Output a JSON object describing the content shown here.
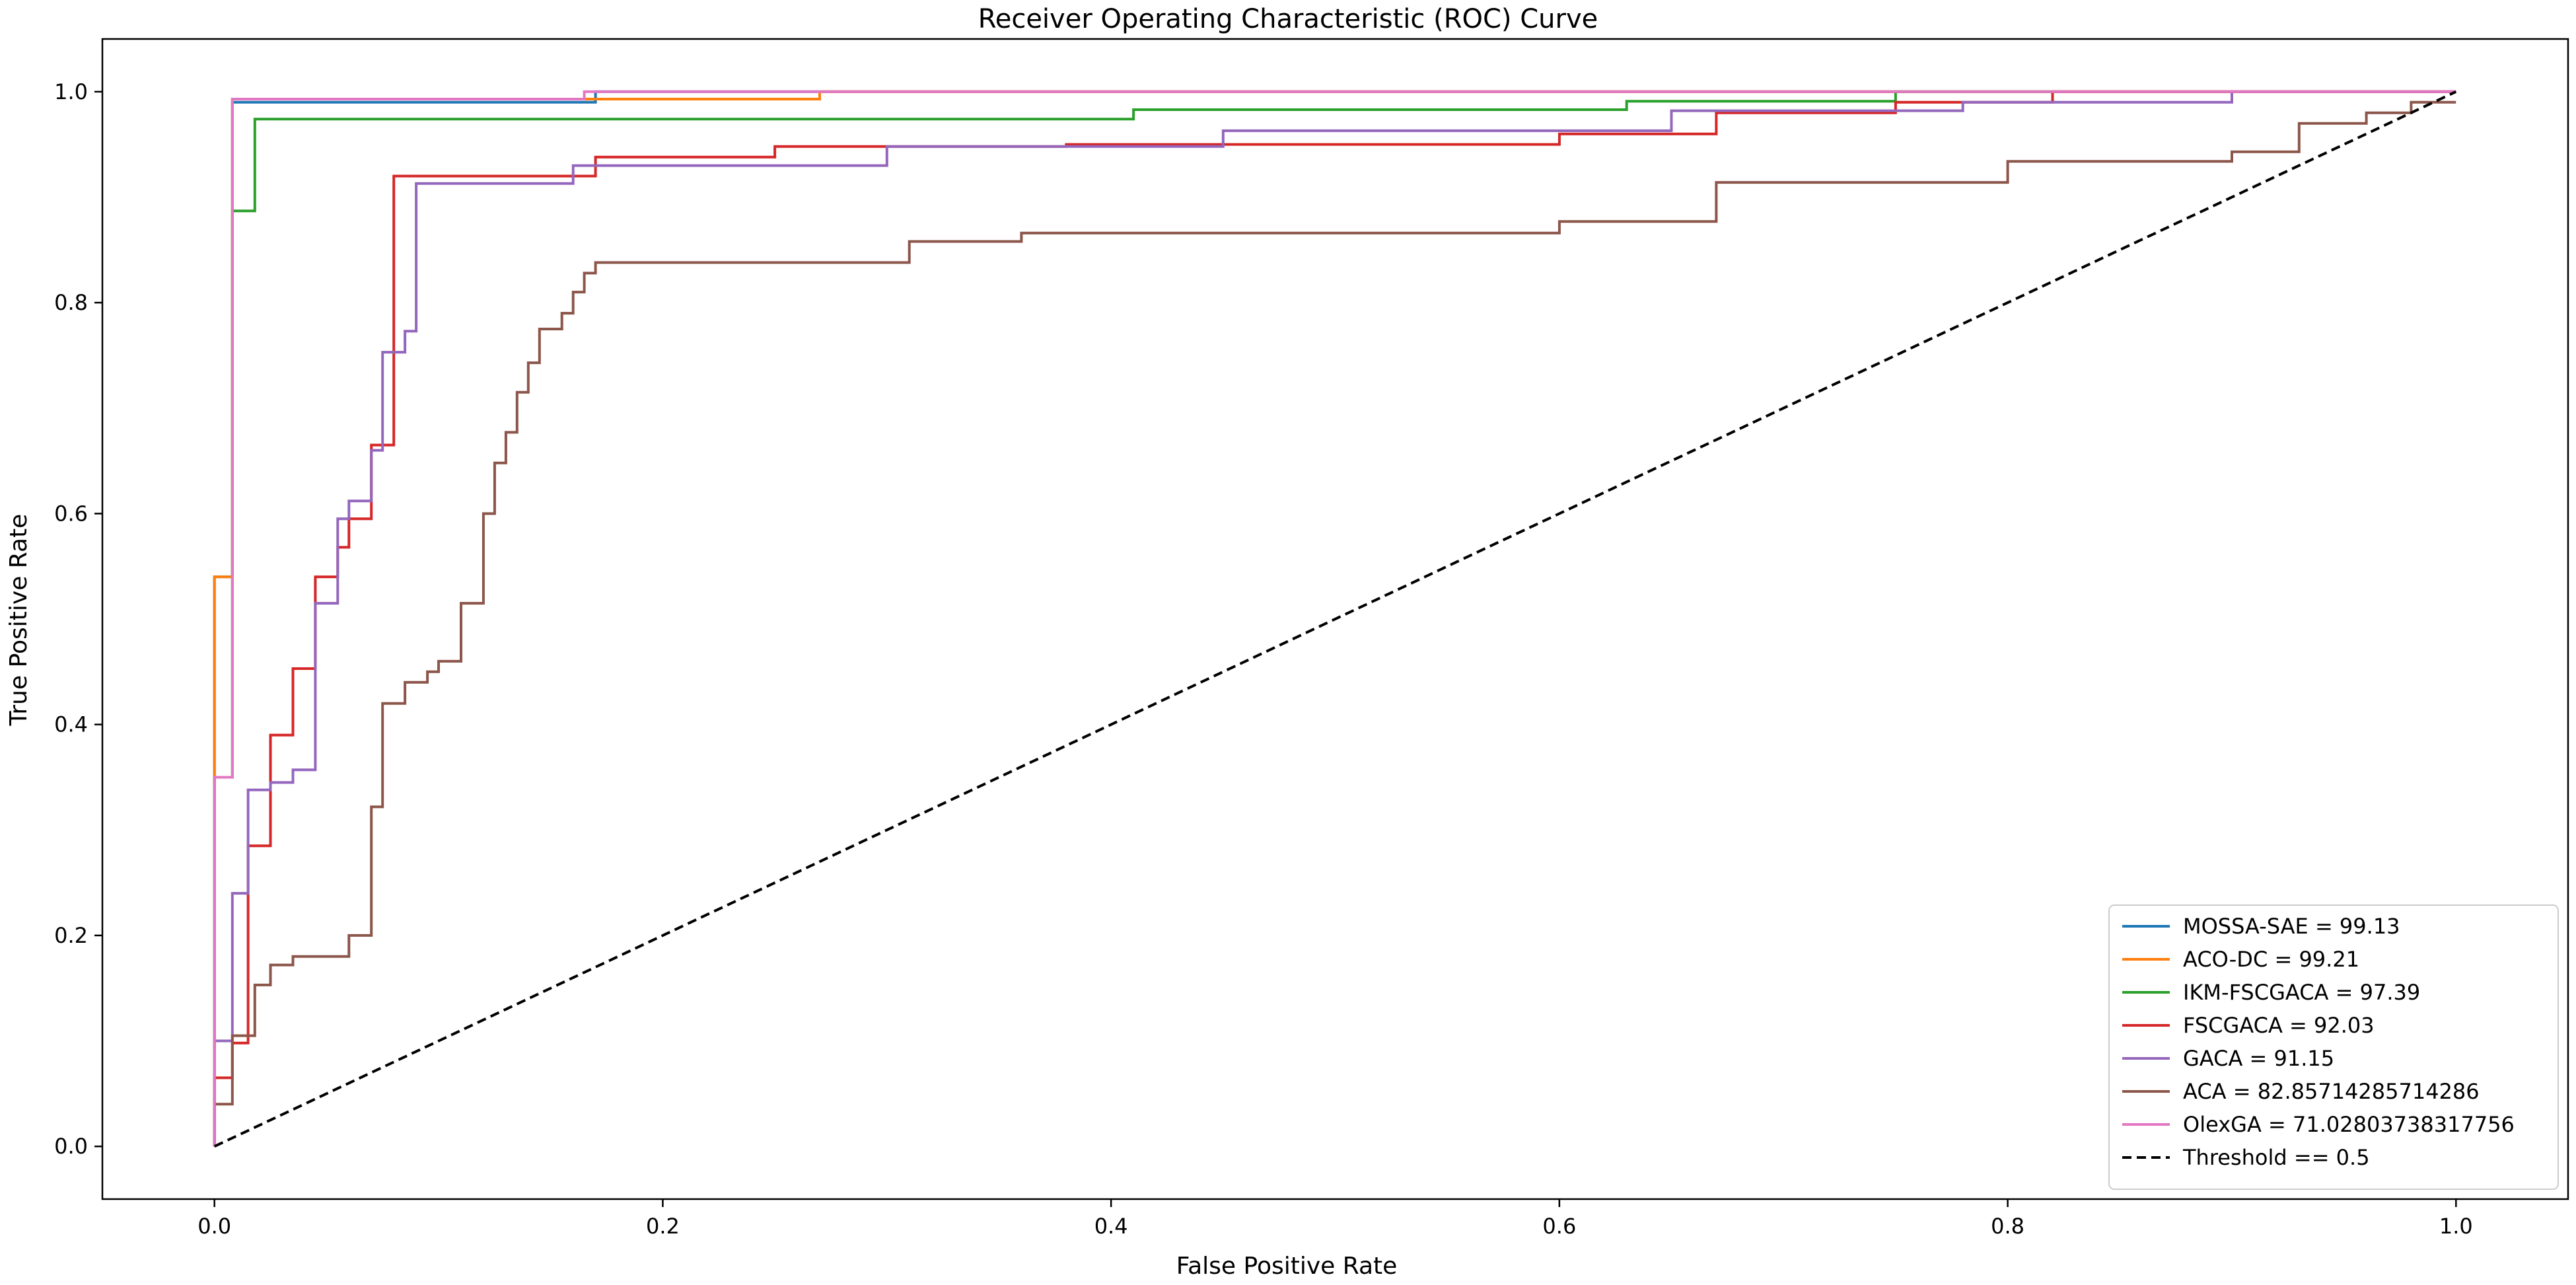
{
  "chart_data": {
    "type": "line",
    "title": "Receiver Operating Characteristic (ROC) Curve",
    "xlabel": "False Positive Rate",
    "ylabel": "True Positive Rate",
    "xlim": [
      -0.05,
      1.05
    ],
    "ylim": [
      -0.05,
      1.05
    ],
    "xticks": [
      0.0,
      0.2,
      0.4,
      0.6,
      0.8,
      1.0
    ],
    "yticks": [
      0.0,
      0.2,
      0.4,
      0.6,
      0.8,
      1.0
    ],
    "xtick_labels": [
      "0.0",
      "0.2",
      "0.4",
      "0.6",
      "0.8",
      "1.0"
    ],
    "ytick_labels": [
      "0.0",
      "0.2",
      "0.4",
      "0.6",
      "0.8",
      "1.0"
    ],
    "grid": false,
    "legend_position": "lower-right",
    "series": [
      {
        "name": "MOSSA-SAE = 99.13",
        "color": "#1f77b4",
        "style": "solid",
        "x": [
          0.0,
          0.0,
          0.008,
          0.008,
          0.17,
          0.17,
          1.0
        ],
        "y": [
          0.0,
          0.54,
          0.54,
          0.99,
          0.99,
          1.0,
          1.0
        ]
      },
      {
        "name": "ACO-DC = 99.21",
        "color": "#ff7f0e",
        "style": "solid",
        "x": [
          0.0,
          0.0,
          0.008,
          0.008,
          0.27,
          0.27,
          1.0
        ],
        "y": [
          0.0,
          0.54,
          0.54,
          0.993,
          0.993,
          1.0,
          1.0
        ]
      },
      {
        "name": "IKM-FSCGACA = 97.39",
        "color": "#2ca02c",
        "style": "solid",
        "x": [
          0.0,
          0.0,
          0.008,
          0.008,
          0.018,
          0.018,
          0.41,
          0.41,
          0.63,
          0.63,
          0.75,
          0.75,
          1.0
        ],
        "y": [
          0.0,
          0.35,
          0.35,
          0.887,
          0.887,
          0.974,
          0.974,
          0.983,
          0.983,
          0.991,
          0.991,
          1.0,
          1.0
        ]
      },
      {
        "name": "FSCGACA = 92.03",
        "color": "#d62728",
        "style": "solid",
        "x": [
          0.0,
          0.0,
          0.008,
          0.008,
          0.015,
          0.015,
          0.025,
          0.025,
          0.035,
          0.035,
          0.045,
          0.045,
          0.055,
          0.055,
          0.06,
          0.06,
          0.07,
          0.07,
          0.08,
          0.08,
          0.15,
          0.15,
          0.17,
          0.17,
          0.25,
          0.25,
          0.38,
          0.38,
          0.6,
          0.6,
          0.67,
          0.67,
          0.75,
          0.75,
          0.82,
          0.82,
          1.0
        ],
        "y": [
          0.0,
          0.065,
          0.065,
          0.098,
          0.098,
          0.285,
          0.285,
          0.39,
          0.39,
          0.453,
          0.453,
          0.54,
          0.54,
          0.568,
          0.568,
          0.595,
          0.595,
          0.665,
          0.665,
          0.92,
          0.92,
          0.92,
          0.92,
          0.938,
          0.938,
          0.948,
          0.948,
          0.95,
          0.95,
          0.96,
          0.96,
          0.98,
          0.98,
          0.99,
          0.99,
          1.0,
          1.0
        ]
      },
      {
        "name": "GACA = 91.15",
        "color": "#9467bd",
        "style": "solid",
        "x": [
          0.0,
          0.0,
          0.008,
          0.008,
          0.015,
          0.015,
          0.025,
          0.025,
          0.035,
          0.035,
          0.045,
          0.045,
          0.055,
          0.055,
          0.06,
          0.06,
          0.07,
          0.07,
          0.075,
          0.075,
          0.085,
          0.085,
          0.09,
          0.09,
          0.16,
          0.16,
          0.3,
          0.3,
          0.45,
          0.45,
          0.65,
          0.65,
          0.78,
          0.78,
          0.9,
          0.9,
          1.0
        ],
        "y": [
          0.0,
          0.1,
          0.1,
          0.24,
          0.24,
          0.338,
          0.338,
          0.345,
          0.345,
          0.357,
          0.357,
          0.515,
          0.515,
          0.595,
          0.595,
          0.612,
          0.612,
          0.66,
          0.66,
          0.753,
          0.753,
          0.773,
          0.773,
          0.913,
          0.913,
          0.93,
          0.93,
          0.948,
          0.948,
          0.963,
          0.963,
          0.982,
          0.982,
          0.99,
          0.99,
          1.0,
          1.0
        ]
      },
      {
        "name": "ACA = 82.85714285714286",
        "color": "#8c564b",
        "style": "solid",
        "x": [
          0.0,
          0.0,
          0.008,
          0.008,
          0.018,
          0.018,
          0.025,
          0.025,
          0.035,
          0.035,
          0.045,
          0.045,
          0.06,
          0.06,
          0.07,
          0.07,
          0.075,
          0.075,
          0.085,
          0.085,
          0.095,
          0.095,
          0.1,
          0.1,
          0.11,
          0.11,
          0.12,
          0.12,
          0.125,
          0.125,
          0.13,
          0.13,
          0.135,
          0.135,
          0.14,
          0.14,
          0.145,
          0.145,
          0.155,
          0.155,
          0.16,
          0.16,
          0.165,
          0.165,
          0.17,
          0.17,
          0.31,
          0.31,
          0.36,
          0.36,
          0.6,
          0.6,
          0.67,
          0.67,
          0.8,
          0.8,
          0.9,
          0.9,
          0.93,
          0.93,
          0.96,
          0.96,
          0.98,
          0.98,
          1.0
        ],
        "y": [
          0.0,
          0.04,
          0.04,
          0.105,
          0.105,
          0.153,
          0.153,
          0.172,
          0.172,
          0.18,
          0.18,
          0.18,
          0.18,
          0.2,
          0.2,
          0.322,
          0.322,
          0.42,
          0.42,
          0.44,
          0.44,
          0.45,
          0.45,
          0.46,
          0.46,
          0.515,
          0.515,
          0.6,
          0.6,
          0.648,
          0.648,
          0.677,
          0.677,
          0.715,
          0.715,
          0.743,
          0.743,
          0.775,
          0.775,
          0.79,
          0.79,
          0.81,
          0.81,
          0.828,
          0.828,
          0.838,
          0.838,
          0.858,
          0.858,
          0.866,
          0.866,
          0.877,
          0.877,
          0.914,
          0.914,
          0.934,
          0.934,
          0.943,
          0.943,
          0.97,
          0.97,
          0.98,
          0.98,
          0.99,
          0.99
        ]
      },
      {
        "name": "OlexGA = 71.02803738317756",
        "color": "#e377c2",
        "style": "solid",
        "x": [
          0.0,
          0.0,
          0.008,
          0.008,
          0.165,
          0.165,
          1.0
        ],
        "y": [
          0.0,
          0.35,
          0.35,
          0.993,
          0.993,
          1.0,
          1.0
        ]
      },
      {
        "name": "Threshold == 0.5",
        "color": "#000000",
        "style": "dashed",
        "x": [
          0.0,
          1.0
        ],
        "y": [
          0.0,
          1.0
        ]
      }
    ]
  }
}
